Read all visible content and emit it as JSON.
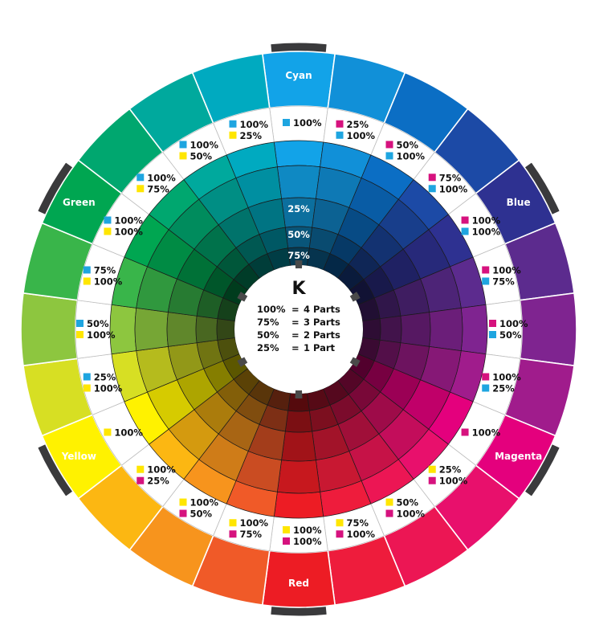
{
  "center": {
    "title": "K",
    "lines": [
      {
        "pct": "100%",
        "eq": "=",
        "parts": "4 Parts"
      },
      {
        "pct": "75%",
        "eq": "=",
        "parts": "3 Parts"
      },
      {
        "pct": "50%",
        "eq": "=",
        "parts": "2 Parts"
      },
      {
        "pct": "25%",
        "eq": "=",
        "parts": "1 Part"
      }
    ]
  },
  "k_ring_labels": [
    "25%",
    "50%",
    "75%"
  ],
  "ink_colors": {
    "cyan": "#1ea5e0",
    "magenta": "#d6127e",
    "yellow": "#ffe600"
  },
  "segments": [
    {
      "hue": "#12a3e8",
      "label": "Cyan",
      "ratios": [
        {
          "ink": "cyan",
          "text": "100%"
        }
      ]
    },
    {
      "hue": "#1190d8",
      "ratios": [
        {
          "ink": "magenta",
          "text": "25%"
        },
        {
          "ink": "cyan",
          "text": "100%"
        }
      ]
    },
    {
      "hue": "#0b6ec4",
      "ratios": [
        {
          "ink": "magenta",
          "text": "50%"
        },
        {
          "ink": "cyan",
          "text": "100%"
        }
      ]
    },
    {
      "hue": "#1c4aa6",
      "ratios": [
        {
          "ink": "magenta",
          "text": "75%"
        },
        {
          "ink": "cyan",
          "text": "100%"
        }
      ]
    },
    {
      "hue": "#2e3191",
      "label": "Blue",
      "ratios": [
        {
          "ink": "magenta",
          "text": "100%"
        },
        {
          "ink": "cyan",
          "text": "100%"
        }
      ]
    },
    {
      "hue": "#5c2b8e",
      "ratios": [
        {
          "ink": "magenta",
          "text": "100%"
        },
        {
          "ink": "cyan",
          "text": "75%"
        }
      ]
    },
    {
      "hue": "#7f2490",
      "ratios": [
        {
          "ink": "magenta",
          "text": "100%"
        },
        {
          "ink": "cyan",
          "text": "50%"
        }
      ]
    },
    {
      "hue": "#a01c8c",
      "ratios": [
        {
          "ink": "magenta",
          "text": "100%"
        },
        {
          "ink": "cyan",
          "text": "25%"
        }
      ]
    },
    {
      "hue": "#e4007d",
      "label": "Magenta",
      "ratios": [
        {
          "ink": "magenta",
          "text": "100%"
        }
      ]
    },
    {
      "hue": "#e8106c",
      "ratios": [
        {
          "ink": "yellow",
          "text": "25%"
        },
        {
          "ink": "magenta",
          "text": "100%"
        }
      ]
    },
    {
      "hue": "#ec1654",
      "ratios": [
        {
          "ink": "yellow",
          "text": "50%"
        },
        {
          "ink": "magenta",
          "text": "100%"
        }
      ]
    },
    {
      "hue": "#ee1c3c",
      "ratios": [
        {
          "ink": "yellow",
          "text": "75%"
        },
        {
          "ink": "magenta",
          "text": "100%"
        }
      ]
    },
    {
      "hue": "#ed1c24",
      "label": "Red",
      "ratios": [
        {
          "ink": "yellow",
          "text": "100%"
        },
        {
          "ink": "magenta",
          "text": "100%"
        }
      ]
    },
    {
      "hue": "#f05a28",
      "ratios": [
        {
          "ink": "yellow",
          "text": "100%"
        },
        {
          "ink": "magenta",
          "text": "75%"
        }
      ]
    },
    {
      "hue": "#f7941d",
      "ratios": [
        {
          "ink": "yellow",
          "text": "100%"
        },
        {
          "ink": "magenta",
          "text": "50%"
        }
      ]
    },
    {
      "hue": "#fcb712",
      "ratios": [
        {
          "ink": "yellow",
          "text": "100%"
        },
        {
          "ink": "magenta",
          "text": "25%"
        }
      ]
    },
    {
      "hue": "#fff200",
      "label": "Yellow",
      "ratios": [
        {
          "ink": "yellow",
          "text": "100%"
        }
      ]
    },
    {
      "hue": "#d7df23",
      "ratios": [
        {
          "ink": "cyan",
          "text": "25%"
        },
        {
          "ink": "yellow",
          "text": "100%"
        }
      ]
    },
    {
      "hue": "#8dc63f",
      "ratios": [
        {
          "ink": "cyan",
          "text": "50%"
        },
        {
          "ink": "yellow",
          "text": "100%"
        }
      ]
    },
    {
      "hue": "#39b54a",
      "ratios": [
        {
          "ink": "cyan",
          "text": "75%"
        },
        {
          "ink": "yellow",
          "text": "100%"
        }
      ]
    },
    {
      "hue": "#00a651",
      "label": "Green",
      "ratios": [
        {
          "ink": "cyan",
          "text": "100%"
        },
        {
          "ink": "yellow",
          "text": "100%"
        }
      ]
    },
    {
      "hue": "#00a76f",
      "ratios": [
        {
          "ink": "cyan",
          "text": "100%"
        },
        {
          "ink": "yellow",
          "text": "75%"
        }
      ]
    },
    {
      "hue": "#00a99d",
      "ratios": [
        {
          "ink": "cyan",
          "text": "100%"
        },
        {
          "ink": "yellow",
          "text": "50%"
        }
      ]
    },
    {
      "hue": "#00aac0",
      "ratios": [
        {
          "ink": "cyan",
          "text": "100%"
        },
        {
          "ink": "yellow",
          "text": "25%"
        }
      ]
    }
  ]
}
